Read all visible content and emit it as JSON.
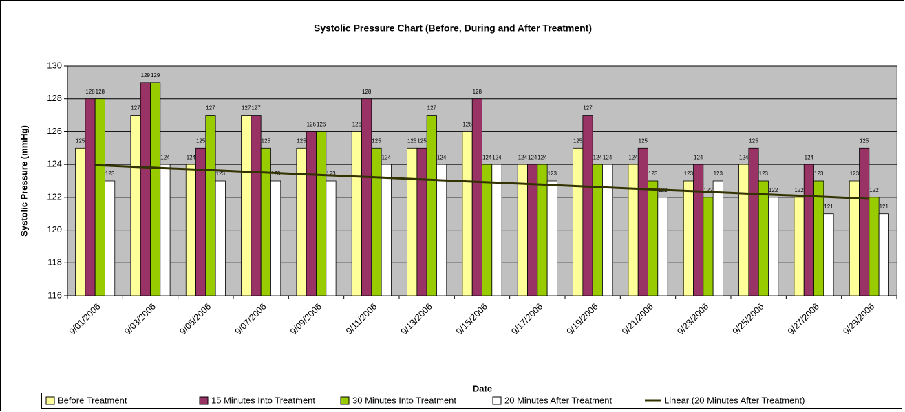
{
  "chart_data": {
    "type": "bar",
    "title": "Systolic Pressure Chart (Before, During and After Treatment)",
    "x_label": "Date",
    "y_label": "Systolic Pressure (mmHg)",
    "categories": [
      "9/01/2006",
      "9/03/2006",
      "9/05/2006",
      "9/07/2006",
      "9/09/2006",
      "9/11/2006",
      "9/13/2006",
      "9/15/2006",
      "9/17/2006",
      "9/19/2006",
      "9/21/2006",
      "9/23/2006",
      "9/25/2006",
      "9/27/2006",
      "9/29/2006"
    ],
    "series": [
      {
        "name": "Before Treatment",
        "color": "#ffff99",
        "values": [
          125,
          127,
          124,
          127,
          125,
          126,
          125,
          126,
          124,
          125,
          124,
          123,
          124,
          122,
          123
        ]
      },
      {
        "name": "15 Minutes Into Treatment",
        "color": "#993366",
        "values": [
          128,
          129,
          125,
          127,
          126,
          128,
          125,
          128,
          124,
          127,
          125,
          124,
          125,
          124,
          125
        ]
      },
      {
        "name": "30 Minutes Into Treatment",
        "color": "#99cc00",
        "values": [
          128,
          129,
          127,
          125,
          126,
          125,
          127,
          124,
          124,
          124,
          123,
          122,
          123,
          123,
          122
        ]
      },
      {
        "name": "20 Minutes After Treatment",
        "color": "#ffffff",
        "values": [
          123,
          124,
          123,
          123,
          123,
          124,
          124,
          124,
          123,
          124,
          122,
          123,
          122,
          121,
          121
        ]
      }
    ],
    "trendline": {
      "name": "Linear (20 Minutes After Treatment)",
      "color": "#333300",
      "values": [
        123.96,
        123.81,
        123.67,
        123.52,
        123.37,
        123.23,
        123.08,
        122.93,
        122.79,
        122.64,
        122.49,
        122.35,
        122.2,
        122.06,
        121.91
      ]
    },
    "ylim": [
      116,
      130
    ],
    "yticks": [
      116,
      118,
      120,
      122,
      124,
      126,
      128,
      130
    ],
    "grid": true,
    "legend": "bottom"
  }
}
